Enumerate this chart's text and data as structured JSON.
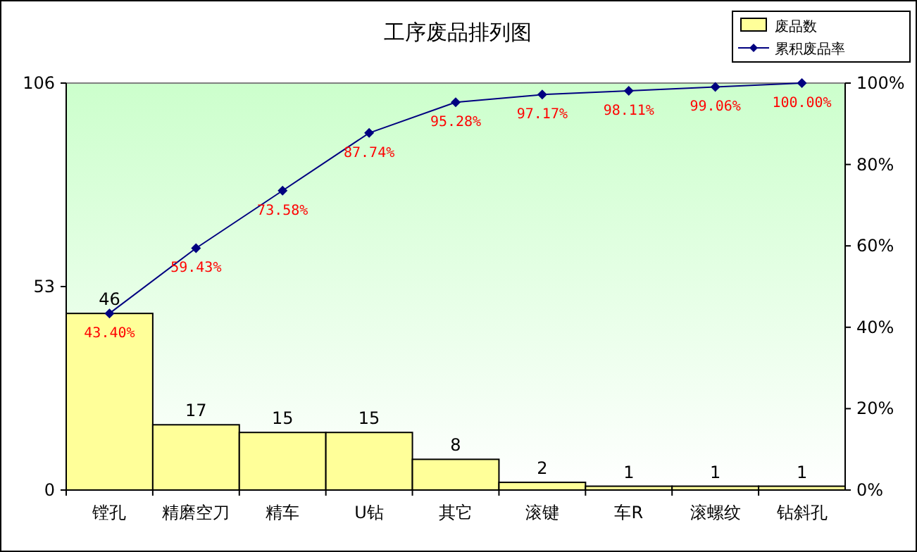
{
  "chart_data": {
    "type": "bar",
    "title": "工序废品排列图",
    "categories": [
      "镗孔",
      "精磨空刀",
      "精车",
      "U钻",
      "其它",
      "滚键",
      "车R",
      "滚螺纹",
      "钻斜孔"
    ],
    "series": [
      {
        "name": "废品数",
        "color": "#ffff99",
        "values": [
          46,
          17,
          15,
          15,
          8,
          2,
          1,
          1,
          1
        ],
        "value_labels": [
          "46",
          "17",
          "15",
          "15",
          "8",
          "2",
          "1",
          "1",
          "1"
        ]
      },
      {
        "name": "累积废品率",
        "type": "line",
        "axis": "y2",
        "color": "#000080",
        "values": [
          43.4,
          59.43,
          73.58,
          87.74,
          95.28,
          97.17,
          98.11,
          99.06,
          100.0
        ],
        "value_labels": [
          "43.40%",
          "59.43%",
          "73.58%",
          "87.74%",
          "95.28%",
          "97.17%",
          "98.11%",
          "99.06%",
          "100.00%"
        ]
      }
    ],
    "ylim": [
      0,
      106
    ],
    "yticks": [
      0,
      53,
      106
    ],
    "y2lim": [
      0,
      100
    ],
    "y2ticks": [
      {
        "value": 0,
        "label": "0%"
      },
      {
        "value": 20,
        "label": "20%"
      },
      {
        "value": 40,
        "label": "40%"
      },
      {
        "value": 60,
        "label": "60%"
      },
      {
        "value": 80,
        "label": "80%"
      },
      {
        "value": 100,
        "label": "100%"
      }
    ],
    "marker": "diamond",
    "legend": "top right",
    "grid": false
  }
}
